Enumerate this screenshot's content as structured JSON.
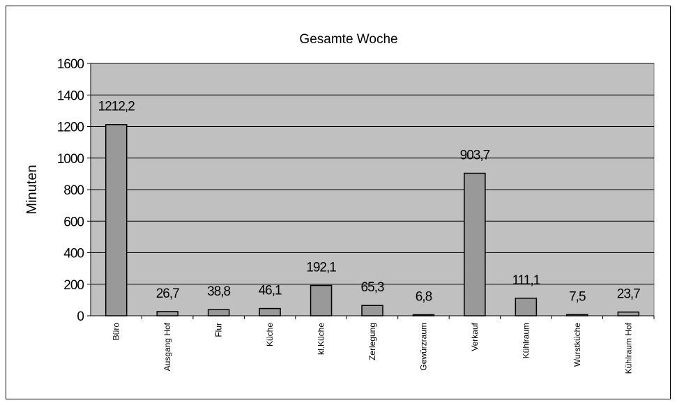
{
  "chart_data": {
    "type": "bar",
    "title": "Gesamte Woche",
    "y_label": "Minuten",
    "categories": [
      "Büro",
      "Ausgang Hof",
      "Flur",
      "Küche",
      "kl.Küche",
      "Zerlegung",
      "Gewürzraum",
      "Verkauf",
      "Kühlraum",
      "Wurstküche",
      "Kühlraum Hof"
    ],
    "values": [
      1212.2,
      26.7,
      38.8,
      46.1,
      192.1,
      65.3,
      6.8,
      903.7,
      111.1,
      7.5,
      23.7
    ],
    "value_labels": [
      "1212,2",
      "26,7",
      "38,8",
      "46,1",
      "192,1",
      "65,3",
      "6,8",
      "903,7",
      "111,1",
      "7,5",
      "23,7"
    ],
    "color": "#999999",
    "background": "#c0c0c0",
    "ylim": [
      0,
      1600
    ],
    "yticks": [
      0,
      200,
      400,
      600,
      800,
      1000,
      1200,
      1400,
      1600
    ],
    "grid": true
  }
}
